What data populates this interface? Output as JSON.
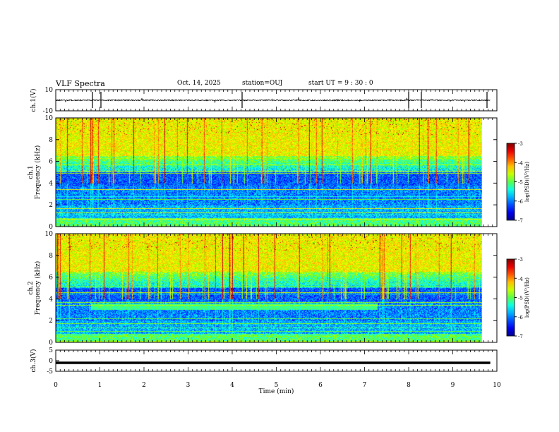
{
  "header": {
    "title": "VLF Spectra",
    "date": "Oct. 14, 2025",
    "station": "station=OUJ",
    "start": "start  UT =   9 : 30 : 0"
  },
  "chart_data": [
    {
      "type": "line",
      "name": "ch1-waveform",
      "ylabel": "ch.1(V)",
      "ylim": [
        -10,
        10
      ],
      "yticks": [
        "10",
        "-10"
      ],
      "x_range_min": [
        0,
        9.85
      ],
      "baseline": 0
    },
    {
      "type": "heatmap",
      "name": "ch1-spectrogram",
      "ylabel_top": "ch.1",
      "ylabel": "Frequency (kHz)",
      "ylim": [
        0,
        10
      ],
      "yticks": [
        "0",
        "2",
        "4",
        "6",
        "8",
        "10"
      ],
      "colorbar": {
        "label": "log(PSD)(V²/Hz)",
        "range": [
          -7,
          -3
        ],
        "ticks": [
          "-3",
          "-4",
          "-5",
          "-6",
          "-7"
        ]
      },
      "enhanced_band_khz": null
    },
    {
      "type": "heatmap",
      "name": "ch2-spectrogram",
      "ylabel_top": "ch.2",
      "ylabel": "Frequency (kHz)",
      "ylim": [
        0,
        10
      ],
      "yticks": [
        "0",
        "2",
        "4",
        "6",
        "8",
        "10"
      ],
      "colorbar": {
        "label": "log(PSD)(V²/Hz)",
        "range": [
          -7,
          -3
        ],
        "ticks": [
          "-3",
          "-4",
          "-5",
          "-6",
          "-7"
        ]
      },
      "enhanced_band_khz": [
        3.0,
        3.6
      ],
      "enhanced_band_time_min": [
        0.8,
        7.4
      ]
    },
    {
      "type": "line",
      "name": "ch3-signal",
      "ylabel": "ch.3(V)",
      "ylim": [
        -5,
        5
      ],
      "yticks": [
        "5",
        "0",
        "-5"
      ],
      "level": -1
    }
  ],
  "x_axis": {
    "xlabel": "Time  (min)",
    "xlim": [
      0,
      10
    ],
    "ticks": [
      "0",
      "1",
      "2",
      "3",
      "4",
      "5",
      "6",
      "7",
      "8",
      "9",
      "10"
    ]
  },
  "colors": {
    "jet": [
      "#00008f",
      "#0000ff",
      "#00ffff",
      "#7fff00",
      "#ffff00",
      "#ff0000",
      "#800000"
    ]
  }
}
